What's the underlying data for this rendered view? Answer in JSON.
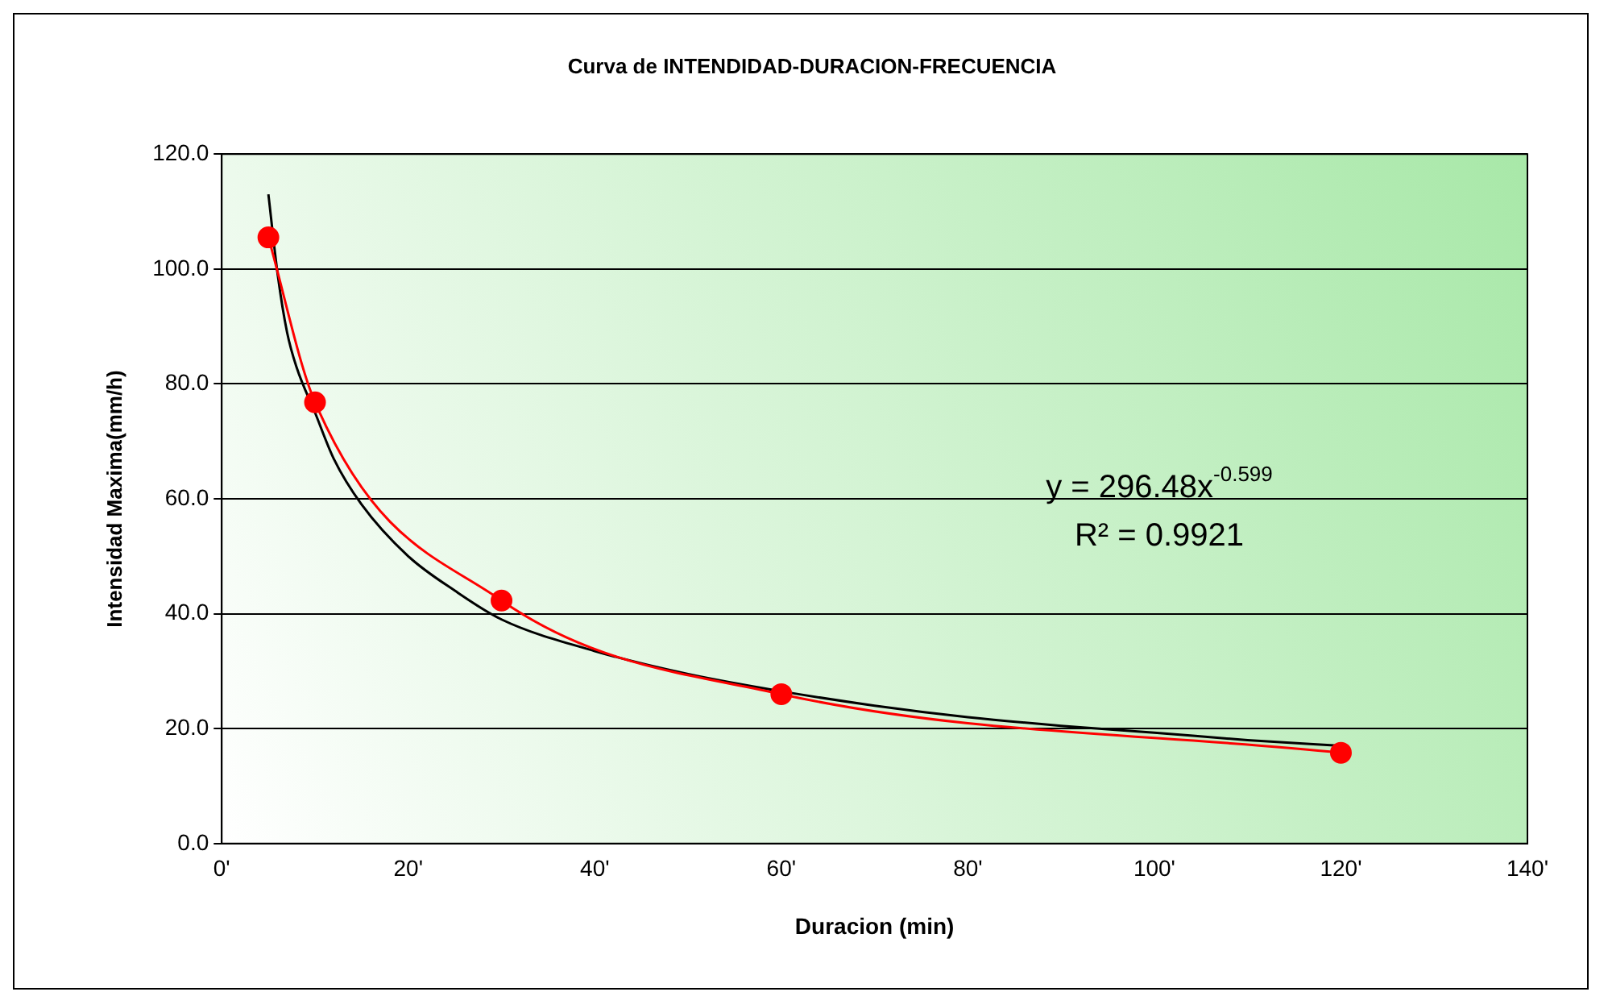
{
  "chart_data": {
    "type": "scatter",
    "title": "Curva de INTENDIDAD-DURACION-FRECUENCIA",
    "xlabel": "Duracion (min)",
    "ylabel": "Intensidad Maxima(mm/h)",
    "xlim": [
      0,
      140
    ],
    "xticks": [
      {
        "value": 0,
        "label": "0'"
      },
      {
        "value": 20,
        "label": "20'"
      },
      {
        "value": 40,
        "label": "40'"
      },
      {
        "value": 60,
        "label": "60'"
      },
      {
        "value": 80,
        "label": "80'"
      },
      {
        "value": 100,
        "label": "100'"
      },
      {
        "value": 120,
        "label": "120'"
      },
      {
        "value": 140,
        "label": "140'"
      }
    ],
    "ylim": [
      0,
      120
    ],
    "yticks": [
      {
        "value": 0,
        "label": "0.0"
      },
      {
        "value": 20,
        "label": "20.0"
      },
      {
        "value": 40,
        "label": "40.0"
      },
      {
        "value": 60,
        "label": "60.0"
      },
      {
        "value": 80,
        "label": "80.0"
      },
      {
        "value": 100,
        "label": "100.0"
      },
      {
        "value": 120,
        "label": "120.0"
      }
    ],
    "grid": "y",
    "legend": false,
    "annotations": [
      "y = 296.48x$^{-0.599}$",
      "R² = 0.9921"
    ],
    "series": [
      {
        "type": "line",
        "color": "#000000",
        "marker": "none",
        "x": [
          5,
          6,
          7,
          8,
          10,
          12,
          15,
          20,
          25,
          30,
          40,
          50,
          60,
          70,
          80,
          90,
          100,
          110,
          120
        ],
        "values": [
          113,
          99,
          89,
          83,
          75,
          67,
          59,
          50,
          44,
          39,
          33.5,
          29.5,
          26.5,
          24,
          22,
          20.5,
          19.3,
          18,
          17
        ]
      },
      {
        "type": "line",
        "color": "#ff0000",
        "marker": "circle",
        "x": [
          5,
          10,
          30,
          60,
          120
        ],
        "values": [
          105.5,
          76.8,
          42.3,
          26,
          15.8
        ]
      }
    ]
  }
}
